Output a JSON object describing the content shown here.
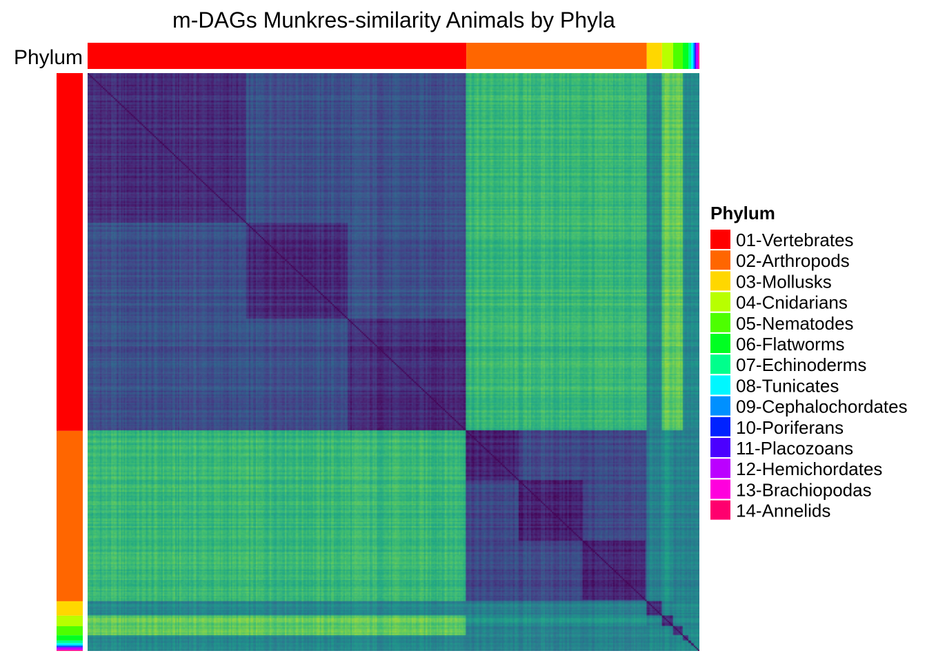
{
  "chart_data": {
    "type": "heatmap",
    "title": "m-DAGs Munkres-similarity  Animals by Phyla",
    "annotation_label": "Phylum",
    "legend_title": "Phylum",
    "legend_position": "right",
    "colormap": "viridis",
    "diagonal": "dark",
    "phyla": [
      {
        "name": "01-Vertebrates",
        "color": "#FF0000",
        "share": 0.6176
      },
      {
        "name": "02-Arthropods",
        "color": "#FF6600",
        "share": 0.2941
      },
      {
        "name": "03-Mollusks",
        "color": "#FFD700",
        "share": 0.0249
      },
      {
        "name": "04-Cnidarians",
        "color": "#B8FF00",
        "share": 0.0181
      },
      {
        "name": "05-Nematodes",
        "color": "#4DFF00",
        "share": 0.0158
      },
      {
        "name": "06-Flatworms",
        "color": "#00FF22",
        "share": 0.009
      },
      {
        "name": "07-Echinoderms",
        "color": "#00FF8C",
        "share": 0.0045
      },
      {
        "name": "08-Tunicates",
        "color": "#00F7FF",
        "share": 0.0034
      },
      {
        "name": "09-Cephalochordates",
        "color": "#0090FF",
        "share": 0.0023
      },
      {
        "name": "10-Poriferans",
        "color": "#0022FF",
        "share": 0.0011
      },
      {
        "name": "11-Placozoans",
        "color": "#4B00FF",
        "share": 0.0011
      },
      {
        "name": "12-Hemichordates",
        "color": "#BB00FF",
        "share": 0.0034
      },
      {
        "name": "13-Brachiopodas",
        "color": "#FF00DD",
        "share": 0.0011
      },
      {
        "name": "14-Annelids",
        "color": "#FF006E",
        "share": 0.0011
      }
    ],
    "subclusters": [
      {
        "group": "01-Vertebrates",
        "start": 0.0,
        "end": 0.26
      },
      {
        "group": "01-Vertebrates",
        "start": 0.26,
        "end": 0.425
      },
      {
        "group": "01-Vertebrates",
        "start": 0.425,
        "end": 0.6176
      },
      {
        "group": "02-Arthropods",
        "start": 0.6176,
        "end": 0.705
      },
      {
        "group": "02-Arthropods",
        "start": 0.705,
        "end": 0.808
      },
      {
        "group": "02-Arthropods",
        "start": 0.808,
        "end": 0.9117
      }
    ]
  }
}
